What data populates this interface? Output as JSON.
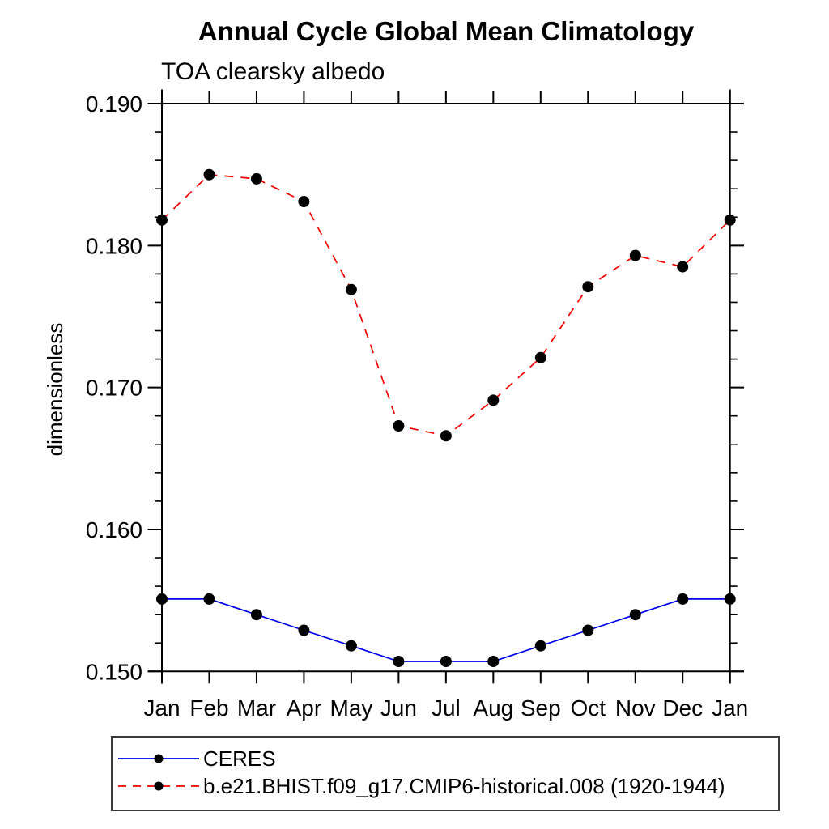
{
  "chart_data": {
    "type": "line",
    "title": "Annual Cycle Global Mean Climatology",
    "subtitle": "TOA clearsky albedo",
    "ylabel": "dimensionless",
    "xlabel": "",
    "categories": [
      "Jan",
      "Feb",
      "Mar",
      "Apr",
      "May",
      "Jun",
      "Jul",
      "Aug",
      "Sep",
      "Oct",
      "Nov",
      "Dec",
      "Jan"
    ],
    "ylim": [
      0.15,
      0.19
    ],
    "y_major_ticks": [
      0.15,
      0.16,
      0.17,
      0.18,
      0.19
    ],
    "y_tick_labels": [
      "0.150",
      "0.160",
      "0.170",
      "0.180",
      "0.190"
    ],
    "y_minor_step": 0.002,
    "grid": false,
    "legend_position": "bottom-left",
    "marker_color": "#000000",
    "axis_color": "#000000",
    "series": [
      {
        "name": "CERES",
        "color": "#0000ee",
        "style": "solid",
        "marker": "filled-circle",
        "values": [
          0.1551,
          0.1551,
          0.154,
          0.1529,
          0.1518,
          0.1507,
          0.1507,
          0.1507,
          0.1518,
          0.1529,
          0.154,
          0.1551,
          0.1551
        ]
      },
      {
        "name": "b.e21.BHIST.f09_g17.CMIP6-historical.008 (1920-1944)",
        "color": "#f40000",
        "style": "dashed",
        "marker": "filled-circle",
        "values": [
          0.1818,
          0.185,
          0.1847,
          0.1831,
          0.1769,
          0.1673,
          0.1666,
          0.1691,
          0.1721,
          0.1771,
          0.1793,
          0.1785,
          0.1818
        ]
      }
    ]
  }
}
